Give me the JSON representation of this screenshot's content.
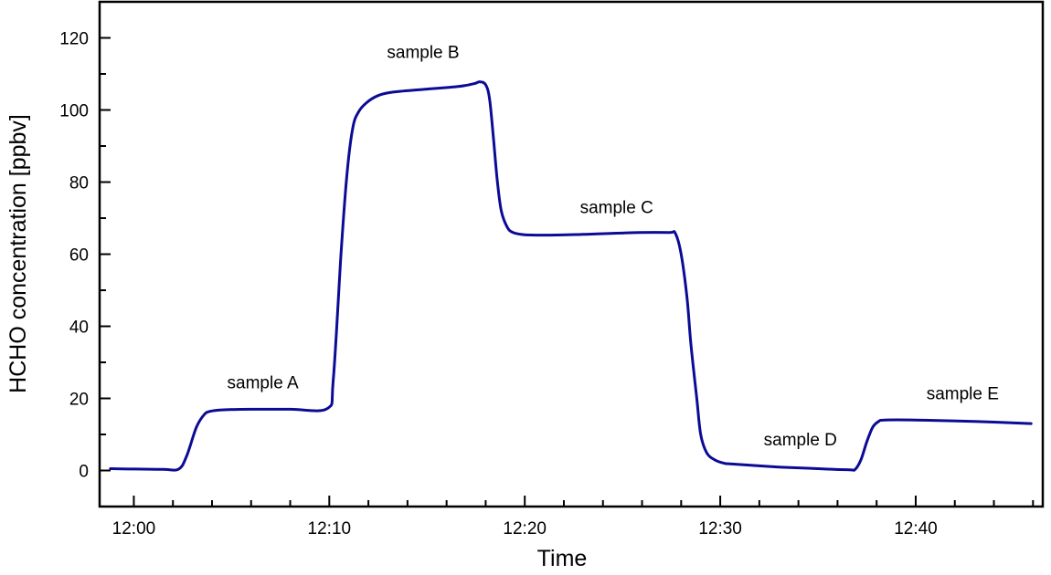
{
  "chart_data": {
    "type": "line",
    "title": "",
    "xlabel": "Time",
    "ylabel": "HCHO concentration [ppbv]",
    "x_unit": "minutes after 12:00",
    "xlim": [
      -1.75,
      46.5
    ],
    "ylim": [
      -10,
      130
    ],
    "x_ticks": [
      {
        "value": 0,
        "label": "12:00"
      },
      {
        "value": 10,
        "label": "12:10"
      },
      {
        "value": 20,
        "label": "12:20"
      },
      {
        "value": 30,
        "label": "12:30"
      },
      {
        "value": 40,
        "label": "12:40"
      }
    ],
    "x_minor_step": 2,
    "y_ticks": [
      0,
      20,
      40,
      60,
      80,
      100,
      120
    ],
    "y_minor_step": 10,
    "grid": false,
    "line_color": "#0b0b96",
    "series": [
      {
        "name": "HCHO",
        "x": [
          -1.2,
          0,
          1.5,
          2.3,
          2.7,
          3.2,
          3.6,
          3.9,
          4.5,
          6,
          8,
          9.9,
          10.2,
          10.6,
          10.9,
          11.2,
          11.5,
          11.9,
          12.5,
          13.3,
          15,
          16.6,
          17.4,
          17.7,
          18.0,
          18.2,
          18.4,
          18.6,
          18.8,
          19.1,
          19.4,
          20,
          21.2,
          23,
          25.9,
          27.4,
          27.7,
          28.0,
          28.3,
          28.5,
          28.8,
          29.0,
          29.3,
          29.7,
          30.2,
          30.6,
          32.9,
          35,
          36.6,
          36.9,
          37.2,
          37.5,
          37.8,
          38.1,
          38.4,
          40.0,
          43,
          45.9
        ],
        "y": [
          0.5,
          0.4,
          0.3,
          0.4,
          4,
          12,
          15.5,
          16.4,
          16.8,
          17,
          17,
          17.2,
          25,
          60,
          82,
          95,
          99.5,
          102,
          104,
          105,
          105.8,
          106.5,
          107.3,
          107.8,
          107,
          103,
          92,
          80,
          72,
          67.5,
          66,
          65.4,
          65.3,
          65.5,
          66,
          66,
          65.8,
          60,
          48,
          35,
          20,
          10,
          5,
          3,
          2,
          1.8,
          1,
          0.5,
          0.2,
          0.3,
          3,
          8,
          12,
          13.6,
          14,
          14,
          13.6,
          13
        ]
      }
    ],
    "annotations": [
      {
        "text": "sample A",
        "x": 6.6,
        "y": 22.8
      },
      {
        "text": "sample B",
        "x": 14.8,
        "y": 114.4
      },
      {
        "text": "sample C",
        "x": 24.7,
        "y": 71.4
      },
      {
        "text": "sample D",
        "x": 34.1,
        "y": 7
      },
      {
        "text": "sample E",
        "x": 42.4,
        "y": 19.7
      }
    ]
  }
}
